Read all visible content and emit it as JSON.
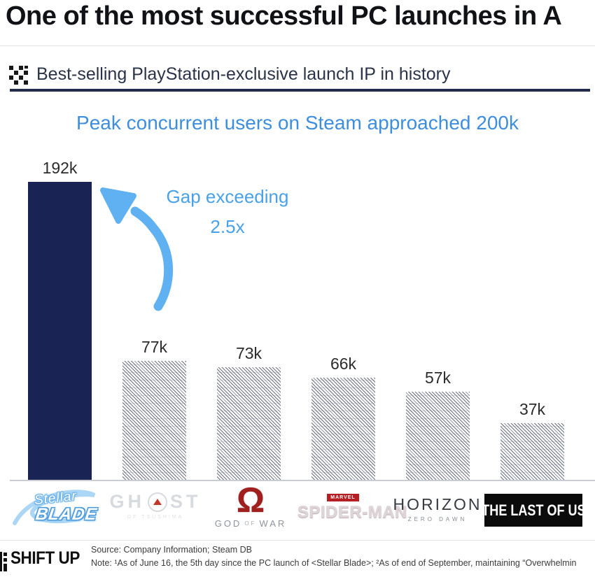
{
  "header": {
    "title": "One of the most successful PC launches in A",
    "subtitle": "Best-selling PlayStation-exclusive launch IP in history"
  },
  "chart": {
    "title": "Peak concurrent users on Steam approached 200k",
    "annotation_line1": "Gap exceeding",
    "annotation_line2": "2.5x"
  },
  "chart_data": {
    "type": "bar",
    "title": "Peak concurrent users on Steam approached 200k",
    "categories": [
      "Stellar Blade",
      "Ghost of Tsushima",
      "God of War",
      "Marvel's Spider-Man",
      "Horizon Zero Dawn",
      "The Last of Us"
    ],
    "values": [
      192,
      77,
      73,
      66,
      57,
      37
    ],
    "labels": [
      "192k",
      "77k",
      "73k",
      "66k",
      "57k",
      "37k"
    ],
    "unit": "thousand peak concurrent Steam users",
    "ylim": [
      0,
      200
    ],
    "grid": false,
    "highlight_index": 0,
    "annotation": "Gap exceeding 2.5x",
    "colors": {
      "highlight_bar": "#192455",
      "hatch_line": "#6f7582",
      "title_blue": "#3e8ede",
      "annotation_blue": "#49a2e9",
      "arrow_blue": "#5fb1f1"
    }
  },
  "logos": {
    "stellar_blade": {
      "script": "Stellar",
      "main": "BLADE"
    },
    "ghost": {
      "left": "GH",
      "right": "ST",
      "sub": "OF TSUSHIMA"
    },
    "god_of_war": {
      "symbol": "Ω",
      "text_left": "GOD",
      "text_mid": "OF",
      "text_right": "WAR"
    },
    "spider_man": {
      "badge": "MARVEL",
      "main": "SPIDER-MAN"
    },
    "horizon": {
      "main": "HORIZON",
      "sub": "ZERO DAWN"
    },
    "tlou": {
      "main": "THE LAST OF US"
    }
  },
  "footer": {
    "brand": "SHIFT UP",
    "source": "Source: Company Information; Steam DB",
    "note": "Note: ¹As of June 16, the 5th day since the PC launch of <Stellar Blade>; ²As of end of September, maintaining “Overwhelmin"
  }
}
